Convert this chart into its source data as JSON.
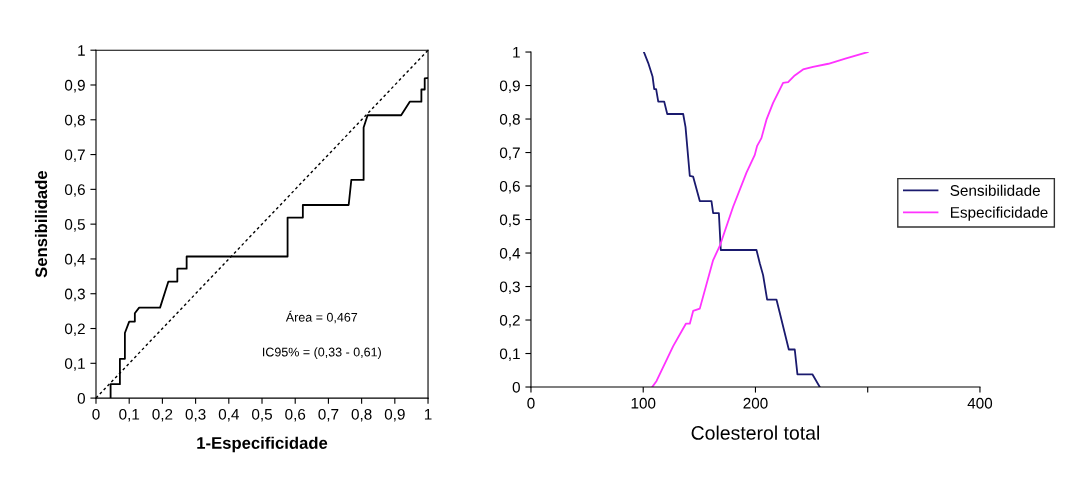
{
  "chart_data": [
    {
      "type": "line",
      "xlabel": "1-Especificidade",
      "ylabel": "Sensibilidade",
      "xlim": [
        0,
        1
      ],
      "ylim": [
        0,
        1
      ],
      "xticks": [
        0,
        {
          "value": 0.1,
          "label": "0,1"
        },
        {
          "value": 0.2,
          "label": "0,2"
        },
        {
          "value": 0.3,
          "label": "0,3"
        },
        {
          "value": 0.4,
          "label": "0,4"
        },
        {
          "value": 0.5,
          "label": "0,5"
        },
        {
          "value": 0.6,
          "label": "0,6"
        },
        {
          "value": 0.7,
          "label": "0,7"
        },
        {
          "value": 0.8,
          "label": "0,8"
        },
        {
          "value": 0.9,
          "label": "0,9"
        },
        1
      ],
      "yticks": [
        0,
        {
          "value": 0.1,
          "label": "0,1"
        },
        {
          "value": 0.2,
          "label": "0,2"
        },
        {
          "value": 0.3,
          "label": "0,3"
        },
        {
          "value": 0.4,
          "label": "0,4"
        },
        {
          "value": 0.5,
          "label": "0,5"
        },
        {
          "value": 0.6,
          "label": "0,6"
        },
        {
          "value": 0.7,
          "label": "0,7"
        },
        {
          "value": 0.8,
          "label": "0,8"
        },
        {
          "value": 0.9,
          "label": "0,9"
        },
        1
      ],
      "series": [
        {
          "color": "#000000",
          "x": [
            0.044,
            0.044,
            0.072,
            0.072,
            0.087,
            0.087,
            0.1,
            0.117,
            0.117,
            0.13,
            0.193,
            0.218,
            0.245,
            0.245,
            0.255,
            0.273,
            0.273,
            0.577,
            0.577,
            0.623,
            0.623,
            0.761,
            0.769,
            0.806,
            0.806,
            0.818,
            0.919,
            0.945,
            0.98,
            0.98,
            0.99,
            0.99,
            1.0
          ],
          "values": [
            0,
            0.04,
            0.04,
            0.113,
            0.113,
            0.187,
            0.22,
            0.22,
            0.244,
            0.26,
            0.26,
            0.335,
            0.335,
            0.372,
            0.372,
            0.372,
            0.407,
            0.407,
            0.519,
            0.519,
            0.555,
            0.555,
            0.627,
            0.627,
            0.778,
            0.813,
            0.813,
            0.852,
            0.852,
            0.887,
            0.887,
            0.919,
            0.92
          ]
        },
        {
          "color": "#000000",
          "line_style": "dotted",
          "x": [
            0,
            1
          ],
          "values": [
            0,
            1
          ]
        }
      ],
      "annotations": [
        "Área = 0,467",
        "IC95% = (0,33 - 0,61)"
      ]
    },
    {
      "type": "line",
      "xlabel": "Colesterol total",
      "xlim": [
        0,
        400
      ],
      "ylim": [
        0,
        1
      ],
      "xticks": [
        0,
        100,
        200,
        {
          "value": 300,
          "label": null
        },
        400
      ],
      "yticks": [
        0,
        {
          "value": 0.1,
          "label": "0,1"
        },
        {
          "value": 0.2,
          "label": "0,2"
        },
        {
          "value": 0.3,
          "label": "0,3"
        },
        {
          "value": 0.4,
          "label": "0,4"
        },
        {
          "value": 0.5,
          "label": "0,5"
        },
        {
          "value": 0.6,
          "label": "0,6"
        },
        {
          "value": 0.7,
          "label": "0,7"
        },
        {
          "value": 0.8,
          "label": "0,8"
        },
        {
          "value": 0.9,
          "label": "0,9"
        },
        1
      ],
      "legend": "right",
      "series": [
        {
          "name": "Sensibilidade",
          "color": "#1a1a6e",
          "x": [
            100.6,
            104.5,
            108.3,
            109.8,
            111.5,
            113.4,
            118.7,
            121.4,
            135.6,
            137.7,
            141.5,
            144.5,
            150.4,
            160.8,
            162.3,
            167.4,
            169.1,
            200.9,
            203.9,
            206.8,
            210.4,
            218.7,
            221.7,
            229.7,
            235,
            237.4,
            250.7,
            257.3
          ],
          "values": [
            1.0,
            0.967,
            0.927,
            0.889,
            0.889,
            0.852,
            0.852,
            0.815,
            0.815,
            0.776,
            0.63,
            0.628,
            0.555,
            0.555,
            0.519,
            0.519,
            0.409,
            0.409,
            0.369,
            0.334,
            0.261,
            0.261,
            0.221,
            0.112,
            0.112,
            0.038,
            0.038,
            0
          ]
        },
        {
          "name": "Especificidade",
          "color": "#ff33ff",
          "x": [
            108,
            111.9,
            126.7,
            138,
            141.5,
            144.5,
            150.4,
            162.3,
            168.2,
            180.1,
            192,
            199.4,
            201.5,
            205.3,
            209.8,
            215.7,
            224.6,
            229.1,
            235,
            242.4,
            251.3,
            265,
            280,
            300
          ],
          "values": [
            0,
            0.018,
            0.122,
            0.189,
            0.189,
            0.227,
            0.234,
            0.379,
            0.421,
            0.538,
            0.64,
            0.693,
            0.72,
            0.743,
            0.798,
            0.848,
            0.908,
            0.91,
            0.93,
            0.948,
            0.956,
            0.965,
            0.98,
            1.0
          ]
        }
      ]
    }
  ]
}
